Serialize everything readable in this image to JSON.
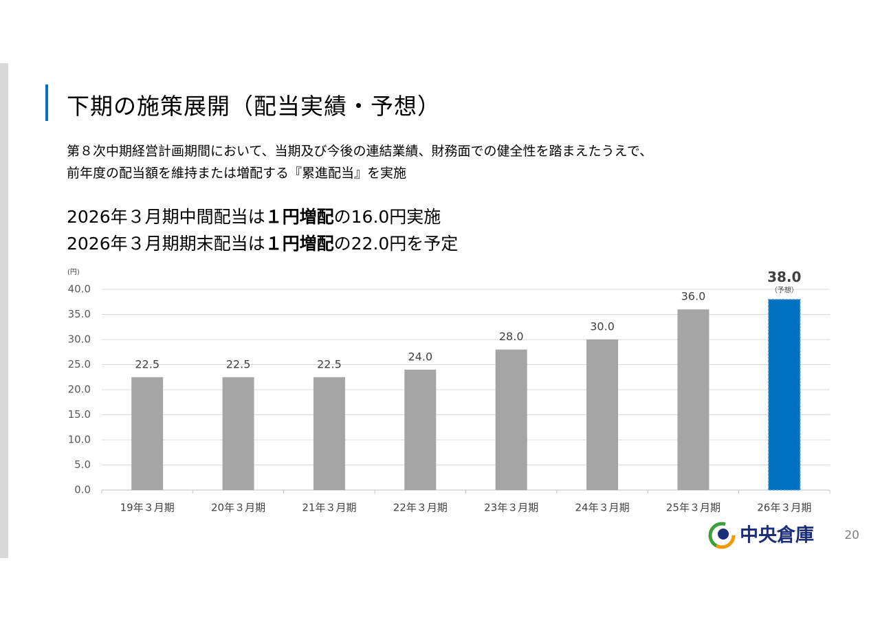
{
  "slide": {
    "title": "下期の施策展開（配当実績・予想）",
    "body": [
      "第８次中期経営計画期間において、当期及び今後の連結業績、財務面での健全性を踏まえたうえで、",
      "前年度の配当額を維持または増配する『累進配当』を実施"
    ],
    "highlights": [
      {
        "lead": "2026年３月期中間配当は",
        "emphasis": "１円増配",
        "rest": "の16.0円実施"
      },
      {
        "lead": "2026年３月期期末配当は",
        "emphasis": "１円増配",
        "rest": "の22.0円を予定"
      }
    ],
    "logo": "中央倉庫",
    "page_number": "20"
  },
  "chart_data": {
    "type": "bar",
    "y_unit": "(円)",
    "categories": [
      "19年３月期",
      "20年３月期",
      "21年３月期",
      "22年３月期",
      "23年３月期",
      "24年３月期",
      "25年３月期",
      "26年３月期"
    ],
    "values": [
      22.5,
      22.5,
      22.5,
      24,
      28,
      30,
      36,
      38
    ],
    "value_labels": [
      "22.5",
      "22.5",
      "22.5",
      "24.0",
      "28.0",
      "30.0",
      "36.0",
      "38.0"
    ],
    "colors": [
      "#a5a5a5",
      "#a5a5a5",
      "#a5a5a5",
      "#a5a5a5",
      "#a5a5a5",
      "#a5a5a5",
      "#a5a5a5",
      "#0070c0"
    ],
    "forecast_note": "（予想）",
    "ylim": [
      0,
      40
    ],
    "yticks": [
      {
        "value": 0,
        "label": "0.0"
      },
      {
        "value": 5,
        "label": "5.0"
      },
      {
        "value": 10,
        "label": "10.0"
      },
      {
        "value": 15,
        "label": "15.0"
      },
      {
        "value": 20,
        "label": "20.0"
      },
      {
        "value": 25,
        "label": "25.0"
      },
      {
        "value": 30,
        "label": "30.0"
      },
      {
        "value": 35,
        "label": "35.0"
      },
      {
        "value": 40,
        "label": "40.0"
      }
    ],
    "grid": true
  }
}
